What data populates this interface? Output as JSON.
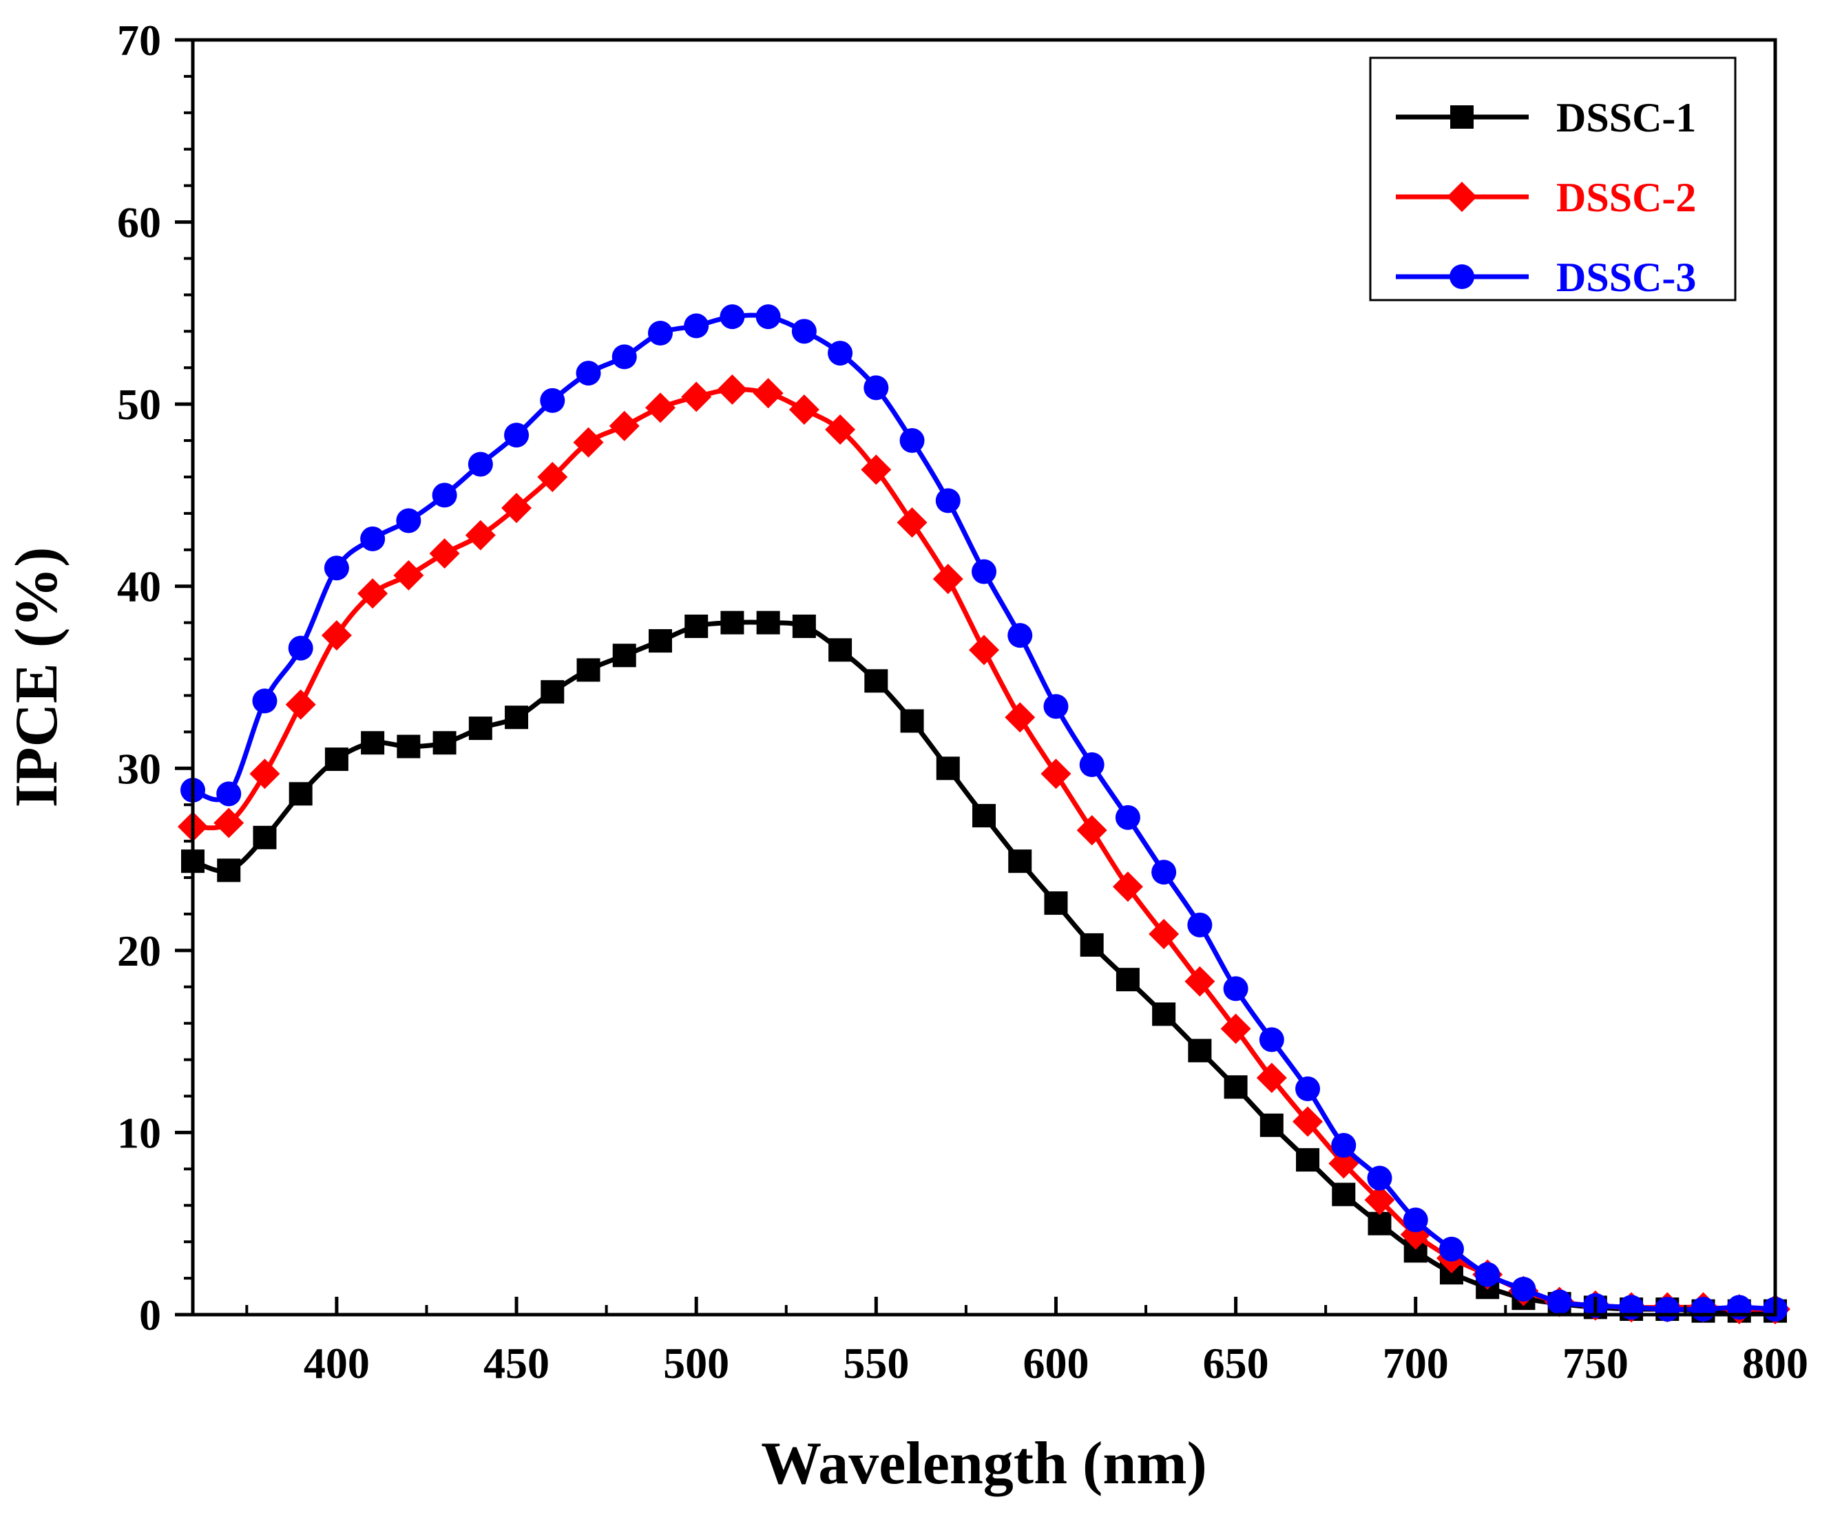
{
  "chart_data": {
    "type": "line",
    "title": "",
    "xlabel": "Wavelength (nm)",
    "ylabel": "IPCE (%)",
    "xlim": [
      360,
      800
    ],
    "ylim": [
      0,
      70
    ],
    "x_ticks": [
      400,
      450,
      500,
      550,
      600,
      650,
      700,
      750,
      800
    ],
    "x_tick_labels": [
      "400",
      "450",
      "500",
      "550",
      "600",
      "650",
      "700",
      "750",
      "800"
    ],
    "y_ticks": [
      0,
      10,
      20,
      30,
      40,
      50,
      60,
      70
    ],
    "y_tick_labels": [
      "0",
      "10",
      "20",
      "30",
      "40",
      "50",
      "60",
      "70"
    ],
    "grid": false,
    "legend_position": "top-right",
    "x": [
      360,
      370,
      380,
      390,
      400,
      410,
      420,
      430,
      440,
      450,
      460,
      470,
      480,
      490,
      500,
      510,
      520,
      530,
      540,
      550,
      560,
      570,
      580,
      590,
      600,
      610,
      620,
      630,
      640,
      650,
      660,
      670,
      680,
      690,
      700,
      710,
      720,
      730,
      740,
      750,
      760,
      770,
      780,
      790,
      800
    ],
    "series": [
      {
        "name": "DSSC-1",
        "color": "#000000",
        "marker": "square",
        "values": [
          24.9,
          24.4,
          26.2,
          28.6,
          30.5,
          31.4,
          31.2,
          31.4,
          32.2,
          32.8,
          34.2,
          35.4,
          36.2,
          37.0,
          37.8,
          38.0,
          38.0,
          37.8,
          36.5,
          34.8,
          32.6,
          30.0,
          27.4,
          24.9,
          22.6,
          20.3,
          18.4,
          16.5,
          14.5,
          12.5,
          10.4,
          8.5,
          6.6,
          5.0,
          3.5,
          2.3,
          1.5,
          0.9,
          0.6,
          0.4,
          0.3,
          0.3,
          0.2,
          0.2,
          0.2
        ]
      },
      {
        "name": "DSSC-2",
        "color": "#ff0000",
        "marker": "diamond",
        "values": [
          26.8,
          27.0,
          29.7,
          33.5,
          37.3,
          39.6,
          40.6,
          41.8,
          42.8,
          44.3,
          46.0,
          47.9,
          48.8,
          49.8,
          50.4,
          50.8,
          50.6,
          49.7,
          48.6,
          46.4,
          43.5,
          40.4,
          36.5,
          32.8,
          29.7,
          26.6,
          23.5,
          20.9,
          18.3,
          15.7,
          13.0,
          10.6,
          8.3,
          6.3,
          4.4,
          3.1,
          2.2,
          1.3,
          0.7,
          0.5,
          0.4,
          0.4,
          0.4,
          0.3,
          0.3
        ]
      },
      {
        "name": "DSSC-3",
        "color": "#0000ff",
        "marker": "circle",
        "values": [
          28.8,
          28.6,
          33.7,
          36.6,
          41.0,
          42.6,
          43.6,
          45.0,
          46.7,
          48.3,
          50.2,
          51.7,
          52.6,
          53.9,
          54.3,
          54.8,
          54.8,
          54.0,
          52.8,
          50.9,
          48.0,
          44.7,
          40.8,
          37.3,
          33.4,
          30.2,
          27.3,
          24.3,
          21.4,
          17.9,
          15.1,
          12.4,
          9.3,
          7.5,
          5.2,
          3.6,
          2.2,
          1.4,
          0.7,
          0.5,
          0.4,
          0.3,
          0.3,
          0.4,
          0.3
        ]
      }
    ]
  }
}
